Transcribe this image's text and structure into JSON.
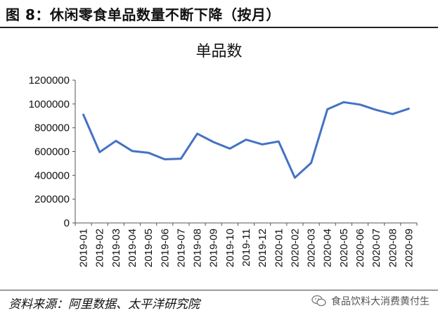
{
  "header": {
    "figure_title": "图 8：休闲零食单品数量不断下降（按月）"
  },
  "chart_data": {
    "type": "line",
    "title": "单品数",
    "categories": [
      "2019-01",
      "2019-02",
      "2019-03",
      "2019-04",
      "2019-05",
      "2019-06",
      "2019-07",
      "2019-08",
      "2019-09",
      "2019-10",
      "2019-11",
      "2019-12",
      "2020-01",
      "2020-02",
      "2020-03",
      "2020-04",
      "2020-05",
      "2020-06",
      "2020-07",
      "2020-08",
      "2020-09"
    ],
    "series": [
      {
        "values": [
          910000,
          595000,
          690000,
          605000,
          590000,
          535000,
          540000,
          750000,
          680000,
          625000,
          700000,
          660000,
          685000,
          380000,
          505000,
          955000,
          1015000,
          995000,
          950000,
          915000,
          960000
        ]
      }
    ],
    "ylim": [
      0,
      1200000
    ],
    "yticks": [
      "0",
      "200000",
      "400000",
      "600000",
      "800000",
      "1000000",
      "1200000"
    ],
    "grid": false,
    "line_color": "#4472C4"
  },
  "footer": {
    "source": "资料来源：阿里数据、太平洋研究院",
    "watermark_text": "食品饮料大消费黄付生",
    "watermark_icon": "wechat-icon"
  }
}
